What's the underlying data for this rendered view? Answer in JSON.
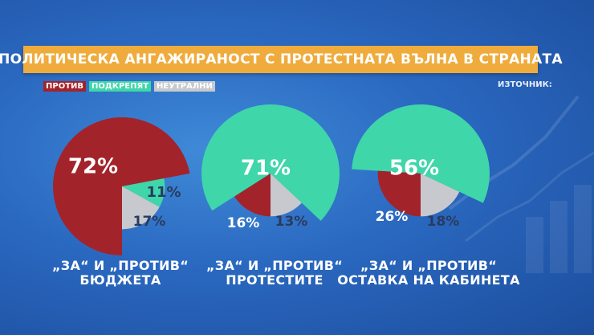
{
  "title": "ПОЛИТИЧЕСКА АНГАЖИРАНОСТ С ПРОТЕСТНАТА ВЪЛНА В СТРАНАТА",
  "source_label": "ИЗТОЧНИК:",
  "legend": [
    {
      "label": "ПРОТИВ",
      "color": "#a3232b"
    },
    {
      "label": "ПОДКРЕПЯТ",
      "color": "#3fd6a9"
    },
    {
      "label": "НЕУТРАЛНИ",
      "color": "#c7c9cf"
    }
  ],
  "chart_data": [
    {
      "type": "pie",
      "caption": [
        "„ЗА“ И „ПРОТИВ“",
        "БЮДЖЕТА"
      ],
      "slices": [
        {
          "name": "ПРОТИВ",
          "value": 72,
          "label": "72%"
        },
        {
          "name": "ПОДКРЕПЯТ",
          "value": 11,
          "label": "11%"
        },
        {
          "name": "НЕУТРАЛНИ",
          "value": 17,
          "label": "17%"
        }
      ]
    },
    {
      "type": "pie",
      "caption": [
        "„ЗА“ И „ПРОТИВ“",
        "ПРОТЕСТИТЕ"
      ],
      "slices": [
        {
          "name": "ПОДКРЕПЯТ",
          "value": 71,
          "label": "71%"
        },
        {
          "name": "НЕУТРАЛНИ",
          "value": 13,
          "label": "13%"
        },
        {
          "name": "ПРОТИВ",
          "value": 16,
          "label": "16%"
        }
      ]
    },
    {
      "type": "pie",
      "caption": [
        "„ЗА“ И „ПРОТИВ“",
        "ОСТАВКА НА КАБИНЕТА"
      ],
      "slices": [
        {
          "name": "ПОДКРЕПЯТ",
          "value": 56,
          "label": "56%"
        },
        {
          "name": "НЕУТРАЛНИ",
          "value": 18,
          "label": "18%"
        },
        {
          "name": "ПРОТИВ",
          "value": 26,
          "label": "26%"
        }
      ]
    }
  ]
}
